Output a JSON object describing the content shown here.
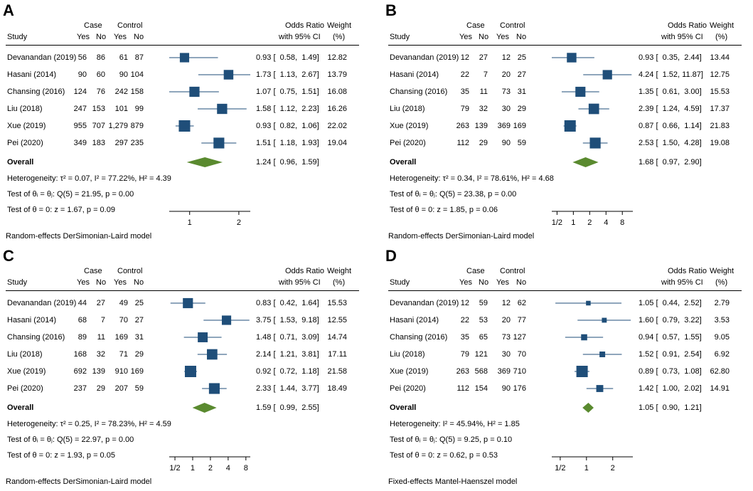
{
  "colors": {
    "box": "#1f4e79",
    "diamond": "#5a8a2f",
    "axis": "#000000"
  },
  "header": {
    "case": "Case",
    "control": "Control",
    "study": "Study",
    "yes": "Yes",
    "no": "No",
    "or_line1": "Odds Ratio",
    "or_line2": "with 95% CI",
    "weight_line1": "Weight",
    "weight_line2": "(%)"
  },
  "overall_label": "Overall",
  "chart_data": [
    {
      "panel": "A",
      "type": "forest",
      "scale": "log",
      "xlim": [
        0.75,
        2.35
      ],
      "ticks": [
        1,
        2
      ],
      "tick_labels": [
        "1",
        "2"
      ],
      "studies": [
        {
          "name": "Devanandan (2019)",
          "case_yes": "56",
          "case_no": "86",
          "ctrl_yes": "61",
          "ctrl_no": "87",
          "or": 0.93,
          "lo": 0.58,
          "hi": 1.49,
          "ci": "0.93 [  0.58,  1.49]",
          "weight": "12.82",
          "w": 12.82
        },
        {
          "name": "Hasani (2014)",
          "case_yes": "90",
          "case_no": "60",
          "ctrl_yes": "90",
          "ctrl_no": "104",
          "or": 1.73,
          "lo": 1.13,
          "hi": 2.67,
          "ci": "1.73 [  1.13,  2.67]",
          "weight": "13.79",
          "w": 13.79
        },
        {
          "name": "Chansing (2016)",
          "case_yes": "124",
          "case_no": "76",
          "ctrl_yes": "242",
          "ctrl_no": "158",
          "or": 1.07,
          "lo": 0.75,
          "hi": 1.51,
          "ci": "1.07 [  0.75,  1.51]",
          "weight": "16.08",
          "w": 16.08
        },
        {
          "name": "Liu (2018)",
          "case_yes": "247",
          "case_no": "153",
          "ctrl_yes": "101",
          "ctrl_no": "99",
          "or": 1.58,
          "lo": 1.12,
          "hi": 2.23,
          "ci": "1.58 [  1.12,  2.23]",
          "weight": "16.26",
          "w": 16.26
        },
        {
          "name": "Xue (2019)",
          "case_yes": "955",
          "case_no": "707",
          "ctrl_yes": "1,279",
          "ctrl_no": "879",
          "or": 0.93,
          "lo": 0.82,
          "hi": 1.06,
          "ci": "0.93 [  0.82,  1.06]",
          "weight": "22.02",
          "w": 22.02
        },
        {
          "name": "Pei (2020)",
          "case_yes": "349",
          "case_no": "183",
          "ctrl_yes": "297",
          "ctrl_no": "235",
          "or": 1.51,
          "lo": 1.18,
          "hi": 1.93,
          "ci": "1.51 [  1.18,  1.93]",
          "weight": "19.04",
          "w": 19.04
        }
      ],
      "overall": {
        "or": 1.24,
        "lo": 0.96,
        "hi": 1.59,
        "ci": "1.24 [  0.96,  1.59]"
      },
      "stats": [
        "Heterogeneity: τ² = 0.07, I² = 77.22%, H² = 4.39",
        "Test of θᵢ = θⱼ: Q(5) = 21.95, p = 0.00",
        "Test of θ = 0: z = 1.67, p = 0.09"
      ],
      "model": "Random-effects DerSimonian-Laird model"
    },
    {
      "panel": "B",
      "type": "forest",
      "scale": "log",
      "xlim": [
        0.4,
        12.5
      ],
      "ticks": [
        0.5,
        1,
        2,
        4,
        8
      ],
      "tick_labels": [
        "1/2",
        "1",
        "2",
        "4",
        "8"
      ],
      "studies": [
        {
          "name": "Devanandan (2019)",
          "case_yes": "12",
          "case_no": "27",
          "ctrl_yes": "12",
          "ctrl_no": "25",
          "or": 0.93,
          "lo": 0.35,
          "hi": 2.44,
          "ci": "0.93 [  0.35,  2.44]",
          "weight": "13.44",
          "w": 13.44
        },
        {
          "name": "Hasani (2014)",
          "case_yes": "22",
          "case_no": "7",
          "ctrl_yes": "20",
          "ctrl_no": "27",
          "or": 4.24,
          "lo": 1.52,
          "hi": 11.87,
          "ci": "4.24 [  1.52, 11.87]",
          "weight": "12.75",
          "w": 12.75
        },
        {
          "name": "Chansing (2016)",
          "case_yes": "35",
          "case_no": "11",
          "ctrl_yes": "73",
          "ctrl_no": "31",
          "or": 1.35,
          "lo": 0.61,
          "hi": 3.0,
          "ci": "1.35 [  0.61,  3.00]",
          "weight": "15.53",
          "w": 15.53
        },
        {
          "name": "Liu (2018)",
          "case_yes": "79",
          "case_no": "32",
          "ctrl_yes": "30",
          "ctrl_no": "29",
          "or": 2.39,
          "lo": 1.24,
          "hi": 4.59,
          "ci": "2.39 [  1.24,  4.59]",
          "weight": "17.37",
          "w": 17.37
        },
        {
          "name": "Xue (2019)",
          "case_yes": "263",
          "case_no": "139",
          "ctrl_yes": "369",
          "ctrl_no": "169",
          "or": 0.87,
          "lo": 0.66,
          "hi": 1.14,
          "ci": "0.87 [  0.66,  1.14]",
          "weight": "21.83",
          "w": 21.83
        },
        {
          "name": "Pei (2020)",
          "case_yes": "112",
          "case_no": "29",
          "ctrl_yes": "90",
          "ctrl_no": "59",
          "or": 2.53,
          "lo": 1.5,
          "hi": 4.28,
          "ci": "2.53 [  1.50,  4.28]",
          "weight": "19.08",
          "w": 19.08
        }
      ],
      "overall": {
        "or": 1.68,
        "lo": 0.97,
        "hi": 2.9,
        "ci": "1.68 [  0.97,  2.90]"
      },
      "stats": [
        "Heterogeneity: τ² = 0.34, I² = 78.61%, H² = 4.68",
        "Test of θᵢ = θⱼ: Q(5) = 23.38, p = 0.00",
        "Test of θ = 0: z = 1.85, p = 0.06"
      ],
      "model": "Random-effects DerSimonian-Laird model"
    },
    {
      "panel": "C",
      "type": "forest",
      "scale": "log",
      "xlim": [
        0.4,
        9.5
      ],
      "ticks": [
        0.5,
        1,
        2,
        4,
        8
      ],
      "tick_labels": [
        "1/2",
        "1",
        "2",
        "4",
        "8"
      ],
      "studies": [
        {
          "name": "Devanandan (2019)",
          "case_yes": "44",
          "case_no": "27",
          "ctrl_yes": "49",
          "ctrl_no": "25",
          "or": 0.83,
          "lo": 0.42,
          "hi": 1.64,
          "ci": "0.83 [  0.42,  1.64]",
          "weight": "15.53",
          "w": 15.53
        },
        {
          "name": "Hasani (2014)",
          "case_yes": "68",
          "case_no": "7",
          "ctrl_yes": "70",
          "ctrl_no": "27",
          "or": 3.75,
          "lo": 1.53,
          "hi": 9.18,
          "ci": "3.75 [  1.53,  9.18]",
          "weight": "12.55",
          "w": 12.55
        },
        {
          "name": "Chansing (2016)",
          "case_yes": "89",
          "case_no": "11",
          "ctrl_yes": "169",
          "ctrl_no": "31",
          "or": 1.48,
          "lo": 0.71,
          "hi": 3.09,
          "ci": "1.48 [  0.71,  3.09]",
          "weight": "14.74",
          "w": 14.74
        },
        {
          "name": "Liu (2018)",
          "case_yes": "168",
          "case_no": "32",
          "ctrl_yes": "71",
          "ctrl_no": "29",
          "or": 2.14,
          "lo": 1.21,
          "hi": 3.81,
          "ci": "2.14 [  1.21,  3.81]",
          "weight": "17.11",
          "w": 17.11
        },
        {
          "name": "Xue (2019)",
          "case_yes": "692",
          "case_no": "139",
          "ctrl_yes": "910",
          "ctrl_no": "169",
          "or": 0.92,
          "lo": 0.72,
          "hi": 1.18,
          "ci": "0.92 [  0.72,  1.18]",
          "weight": "21.58",
          "w": 21.58
        },
        {
          "name": "Pei (2020)",
          "case_yes": "237",
          "case_no": "29",
          "ctrl_yes": "207",
          "ctrl_no": "59",
          "or": 2.33,
          "lo": 1.44,
          "hi": 3.77,
          "ci": "2.33 [  1.44,  3.77]",
          "weight": "18.49",
          "w": 18.49
        }
      ],
      "overall": {
        "or": 1.59,
        "lo": 0.99,
        "hi": 2.55,
        "ci": "1.59 [  0.99,  2.55]"
      },
      "stats": [
        "Heterogeneity: τ² = 0.25, I² = 78.23%, H² = 4.59",
        "Test of θᵢ = θⱼ: Q(5) = 22.97, p = 0.00",
        "Test of θ = 0: z = 1.93, p = 0.05"
      ],
      "model": "Random-effects DerSimonian-Laird model"
    },
    {
      "panel": "D",
      "type": "forest",
      "scale": "log",
      "xlim": [
        0.4,
        3.4
      ],
      "ticks": [
        0.5,
        1,
        2
      ],
      "tick_labels": [
        "1/2",
        "1",
        "2"
      ],
      "studies": [
        {
          "name": "Devanandan (2019)",
          "case_yes": "12",
          "case_no": "59",
          "ctrl_yes": "12",
          "ctrl_no": "62",
          "or": 1.05,
          "lo": 0.44,
          "hi": 2.52,
          "ci": "1.05 [  0.44,  2.52]",
          "weight": "2.79",
          "w": 2.79
        },
        {
          "name": "Hasani (2014)",
          "case_yes": "22",
          "case_no": "53",
          "ctrl_yes": "20",
          "ctrl_no": "77",
          "or": 1.6,
          "lo": 0.79,
          "hi": 3.22,
          "ci": "1.60 [  0.79,  3.22]",
          "weight": "3.53",
          "w": 3.53
        },
        {
          "name": "Chansing (2016)",
          "case_yes": "35",
          "case_no": "65",
          "ctrl_yes": "73",
          "ctrl_no": "127",
          "or": 0.94,
          "lo": 0.57,
          "hi": 1.55,
          "ci": "0.94 [  0.57,  1.55]",
          "weight": "9.05",
          "w": 9.05
        },
        {
          "name": "Liu (2018)",
          "case_yes": "79",
          "case_no": "121",
          "ctrl_yes": "30",
          "ctrl_no": "70",
          "or": 1.52,
          "lo": 0.91,
          "hi": 2.54,
          "ci": "1.52 [  0.91,  2.54]",
          "weight": "6.92",
          "w": 6.92
        },
        {
          "name": "Xue (2019)",
          "case_yes": "263",
          "case_no": "568",
          "ctrl_yes": "369",
          "ctrl_no": "710",
          "or": 0.89,
          "lo": 0.73,
          "hi": 1.08,
          "ci": "0.89 [  0.73,  1.08]",
          "weight": "62.80",
          "w": 62.8
        },
        {
          "name": "Pei (2020)",
          "case_yes": "112",
          "case_no": "154",
          "ctrl_yes": "90",
          "ctrl_no": "176",
          "or": 1.42,
          "lo": 1.0,
          "hi": 2.02,
          "ci": "1.42 [  1.00,  2.02]",
          "weight": "14.91",
          "w": 14.91
        }
      ],
      "overall": {
        "or": 1.05,
        "lo": 0.9,
        "hi": 1.21,
        "ci": "1.05 [  0.90,  1.21]"
      },
      "stats": [
        "Heterogeneity: I² = 45.94%, H² = 1.85",
        "Test of θᵢ = θⱼ: Q(5) = 9.25, p = 0.10",
        "Test of θ = 0: z = 0.62, p = 0.53"
      ],
      "model": "Fixed-effects Mantel-Haenszel model"
    }
  ]
}
